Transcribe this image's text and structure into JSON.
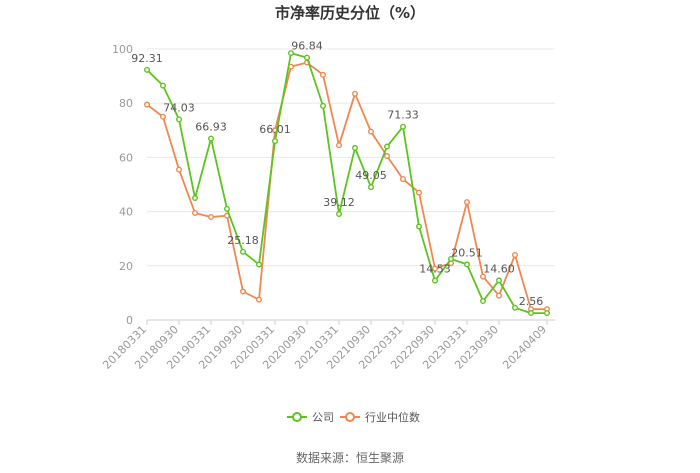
{
  "chart_data": {
    "type": "line",
    "title": "市净率历史分位（%）",
    "ylim": [
      0,
      100
    ],
    "yticks": [
      0,
      20,
      40,
      60,
      80,
      100
    ],
    "x": [
      "20180331",
      "20180630",
      "20180930",
      "20181231",
      "20190331",
      "20190630",
      "20190930",
      "20191231",
      "20200331",
      "20200630",
      "20200930",
      "20201231",
      "20210331",
      "20210630",
      "20210930",
      "20211231",
      "20220331",
      "20220630",
      "20220930",
      "20221231",
      "20230331",
      "20230630",
      "20230930",
      "20231231",
      "20240331",
      "20240409"
    ],
    "xtick_labels": [
      "20180331",
      "20180930",
      "20190331",
      "20190930",
      "20200331",
      "20200930",
      "20210331",
      "20210930",
      "20220331",
      "20220930",
      "20230331",
      "20230930",
      "20240409"
    ],
    "series": [
      {
        "name": "公司",
        "color": "#5cc41c",
        "values": [
          92.31,
          86.5,
          74.03,
          45.0,
          66.93,
          41.0,
          25.18,
          20.5,
          66.01,
          98.5,
          96.84,
          79.0,
          39.12,
          63.5,
          49.05,
          64.0,
          71.33,
          34.5,
          14.53,
          22.5,
          20.51,
          7.0,
          14.6,
          4.5,
          2.56,
          2.56
        ]
      },
      {
        "name": "行业中位数",
        "color": "#f0874f",
        "values": [
          79.5,
          75.0,
          55.5,
          39.5,
          38.0,
          38.5,
          10.5,
          7.5,
          70.0,
          93.5,
          95.0,
          90.5,
          64.5,
          83.5,
          69.5,
          60.5,
          52.0,
          47.0,
          19.0,
          21.0,
          43.5,
          16.0,
          9.0,
          24.0,
          4.0,
          4.0
        ]
      }
    ],
    "data_labels": [
      {
        "index": 0,
        "text": "92.31"
      },
      {
        "index": 2,
        "text": "74.03"
      },
      {
        "index": 4,
        "text": "66.93"
      },
      {
        "index": 6,
        "text": "25.18"
      },
      {
        "index": 8,
        "text": "66.01"
      },
      {
        "index": 10,
        "text": "96.84"
      },
      {
        "index": 12,
        "text": "39.12"
      },
      {
        "index": 14,
        "text": "49.05"
      },
      {
        "index": 16,
        "text": "71.33"
      },
      {
        "index": 18,
        "text": "14.53"
      },
      {
        "index": 20,
        "text": "20.51"
      },
      {
        "index": 22,
        "text": "14.60"
      },
      {
        "index": 24,
        "text": "2.56"
      }
    ],
    "legend": {
      "position": "bottom-center"
    },
    "grid": true
  },
  "source": "数据来源：恒生聚源"
}
